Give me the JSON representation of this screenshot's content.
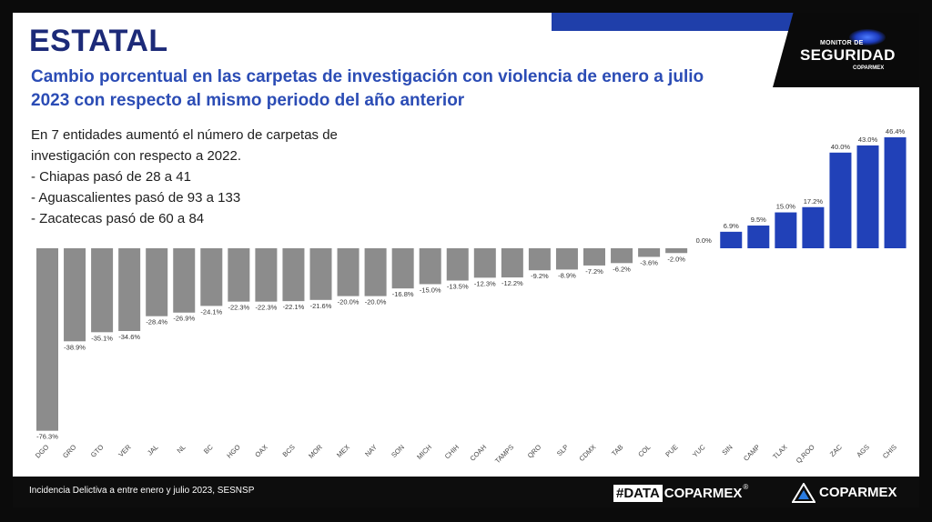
{
  "header": {
    "title": "ESTATAL",
    "subtitle": "Cambio porcentual en las carpetas de investigación con violencia de enero a julio 2023 con respecto al mismo periodo del año anterior"
  },
  "logo": {
    "small": "MONITOR DE",
    "main": "SEGURIDAD",
    "sub": "COPARMEX"
  },
  "notes": {
    "intro": "En 7 entidades aumentó el número de carpetas de investigación con respecto a 2022.",
    "bullets": [
      "-   Chiapas pasó de 28 a 41",
      "-   Aguascalientes pasó de 93 a 133",
      "-   Zacatecas pasó de 60 a 84"
    ]
  },
  "footer": {
    "source": "Incidencia Delictiva a entre enero y julio 2023, SESNSP",
    "data_prefix": "#DATA",
    "data_brand": "COPARMEX",
    "trademark": "®",
    "brand": "COPARMEX"
  },
  "colors": {
    "negative": "#8c8c8c",
    "positive": "#2141b8",
    "title": "#1c2a78",
    "subtitle": "#2b4cb5"
  },
  "chart_data": {
    "type": "bar",
    "title": "Cambio porcentual en las carpetas de investigación con violencia",
    "xlabel": "",
    "ylabel": "",
    "ylim": [
      -76.3,
      46.4
    ],
    "grid": false,
    "categories": [
      "DGO",
      "GRO",
      "GTO",
      "VER",
      "JAL",
      "NL",
      "BC",
      "HGO",
      "OAX",
      "BCS",
      "MOR",
      "MEX",
      "NAY",
      "SON",
      "MICH",
      "CHIH",
      "COAH",
      "TAMPS",
      "QRO",
      "SLP",
      "CDMX",
      "TAB",
      "COL",
      "PUE",
      "YUC",
      "SIN",
      "CAMP",
      "TLAX",
      "Q.ROO",
      "ZAC",
      "AGS",
      "CHIS"
    ],
    "values": [
      -76.3,
      -38.9,
      -35.1,
      -34.6,
      -28.4,
      -26.9,
      -24.1,
      -22.3,
      -22.3,
      -22.1,
      -21.6,
      -20.0,
      -20.0,
      -16.8,
      -15.0,
      -13.5,
      -12.3,
      -12.2,
      -9.2,
      -8.9,
      -7.2,
      -6.2,
      -3.6,
      -2.0,
      0.0,
      6.9,
      9.5,
      15.0,
      17.2,
      40.0,
      43.0,
      46.4
    ],
    "labels": [
      "-76.3%",
      "-38.9%",
      "-35.1%",
      "-34.6%",
      "-28.4%",
      "-26.9%",
      "-24.1%",
      "-22.3%",
      "-22.3%",
      "-22.1%",
      "-21.6%",
      "-20.0%",
      "-20.0%",
      "-16.8%",
      "-15.0%",
      "-13.5%",
      "-12.3%",
      "-12.2%",
      "-9.2%",
      "-8.9%",
      "-7.2%",
      "-6.2%",
      "-3.6%",
      "-2.0%",
      "0.0%",
      "6.9%",
      "9.5%",
      "15.0%",
      "17.2%",
      "40.0%",
      "43.0%",
      "46.4%"
    ]
  }
}
